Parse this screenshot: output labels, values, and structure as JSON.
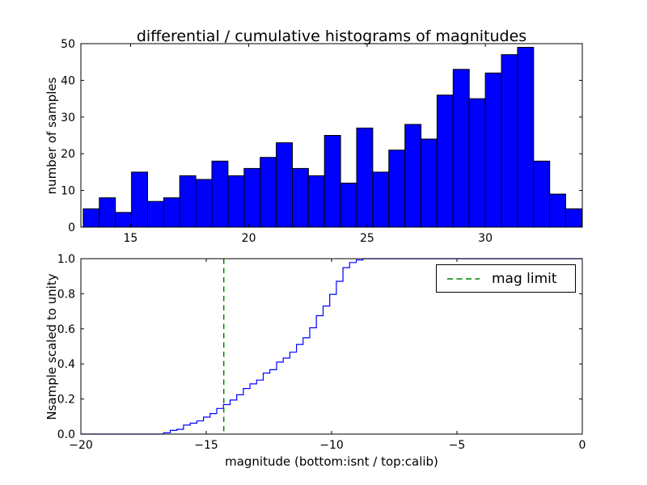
{
  "figure": {
    "background": "#ffffff"
  },
  "chart_data": [
    {
      "type": "bar",
      "title": "differential / cumulative histograms of magnitudes",
      "ylabel": "number of samples",
      "xlabel": "",
      "xlim": [
        12.9,
        34.1
      ],
      "ylim": [
        0,
        50
      ],
      "xticks": [
        15,
        20,
        25,
        30
      ],
      "xtick_labels": [
        "15",
        "20",
        "25",
        "30"
      ],
      "yticks": [
        0,
        10,
        20,
        30,
        40,
        50
      ],
      "ytick_labels": [
        "0",
        "10",
        "20",
        "30",
        "40",
        "50"
      ],
      "bin_start": 13.0,
      "bin_width": 0.68,
      "values": [
        5,
        8,
        4,
        15,
        7,
        8,
        14,
        13,
        18,
        14,
        16,
        19,
        23,
        16,
        14,
        25,
        12,
        27,
        15,
        21,
        28,
        24,
        36,
        43,
        35,
        42,
        47,
        49,
        18,
        9,
        5
      ],
      "bar_color": "#0000ff",
      "bar_edge_color": "#000000",
      "grid": false,
      "legend": null
    },
    {
      "type": "line",
      "style": "step-cumulative",
      "title": "",
      "ylabel": "Nsample scaled to unity",
      "xlabel": "magnitude (bottom:isnt / top:calib)",
      "xlim": [
        -20,
        0
      ],
      "ylim": [
        0,
        1
      ],
      "xticks": [
        -20,
        -15,
        -10,
        -5,
        0
      ],
      "xtick_labels": [
        "−20",
        "−15",
        "−10",
        "−5",
        "0"
      ],
      "yticks": [
        0,
        0.2,
        0.4,
        0.6,
        0.8,
        1
      ],
      "ytick_labels": [
        "0.0",
        "0.2",
        "0.4",
        "0.6",
        "0.8",
        "1.0"
      ],
      "step_start": -16.7,
      "step_width": 0.265,
      "cumulative_fraction": [
        0.008,
        0.021,
        0.027,
        0.051,
        0.062,
        0.075,
        0.097,
        0.117,
        0.146,
        0.168,
        0.194,
        0.224,
        0.26,
        0.286,
        0.308,
        0.348,
        0.367,
        0.41,
        0.433,
        0.467,
        0.511,
        0.549,
        0.606,
        0.675,
        0.73,
        0.797,
        0.871,
        0.949,
        0.978,
        0.992,
        1.0
      ],
      "line_color": "#0000ff",
      "mag_limit": {
        "x": -14.3,
        "color": "#008000",
        "line_style": "dashed",
        "label": "mag limit"
      },
      "legend": {
        "position": "upper right",
        "entries": [
          "mag limit"
        ]
      },
      "grid": false
    }
  ]
}
